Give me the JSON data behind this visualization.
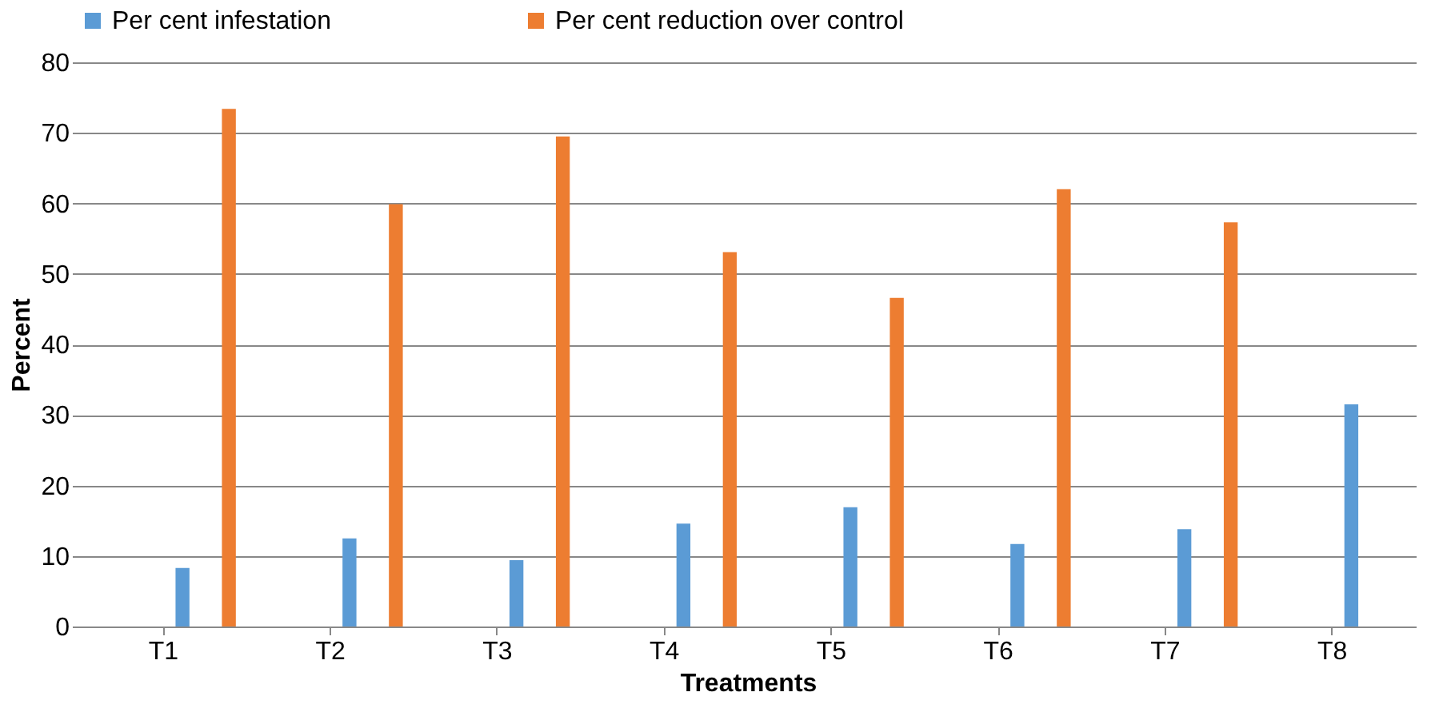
{
  "chart_data": {
    "type": "bar",
    "xlabel": "Treatments",
    "ylabel": "Percent",
    "categories": [
      "T1",
      "T2",
      "T3",
      "T4",
      "T5",
      "T6",
      "T7",
      "T8"
    ],
    "series": [
      {
        "name": "Per cent infestation",
        "color": "#5b9bd5",
        "values": [
          8.3,
          12.5,
          9.4,
          14.6,
          16.9,
          11.7,
          13.8,
          31.5
        ]
      },
      {
        "name": "Per cent reduction over control",
        "color": "#ed7d31",
        "values": [
          73.4,
          59.9,
          69.5,
          53.1,
          46.6,
          62.0,
          57.3,
          null
        ]
      }
    ],
    "ylim": [
      0,
      80
    ],
    "yticks": [
      0,
      10,
      20,
      30,
      40,
      50,
      60,
      70,
      80
    ],
    "grid": "y",
    "legend": "top"
  }
}
